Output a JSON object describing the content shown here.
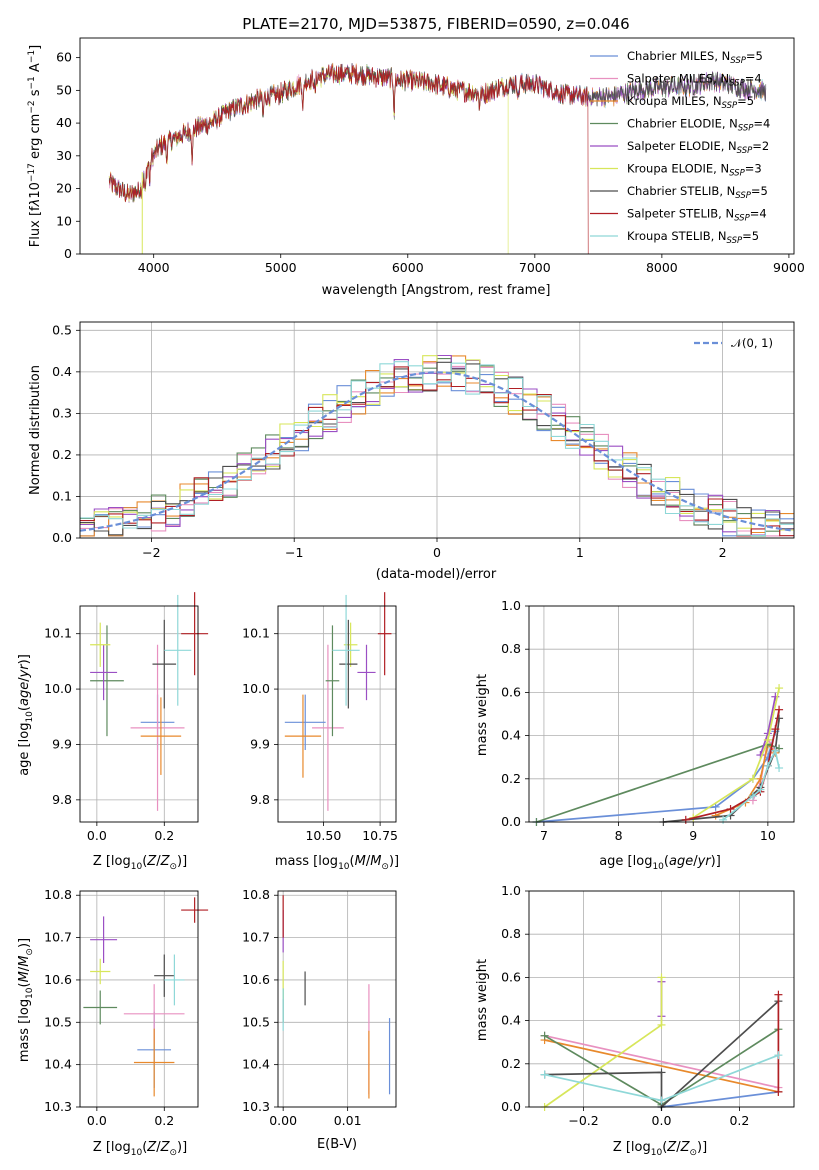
{
  "colors": {
    "c0": "#6a8fd8",
    "c1": "#e891c0",
    "c2": "#e8892c",
    "c3": "#5e8a5e",
    "c4": "#9b4fc4",
    "c5": "#d7e65a",
    "c6": "#4d4d4d",
    "c7": "#b01f24",
    "c8": "#8fd8d8"
  },
  "chart_data": [
    {
      "type": "line",
      "title": "PLATE=2170, MJD=53875, FIBERID=0590, z=0.046",
      "xlabel": "wavelength [Angstrom, rest frame]",
      "ylabel": "Flux [f_λ10^-17 erg cm^-2 s^-1 A^-1]",
      "xlim": [
        3420,
        9040
      ],
      "ylim": [
        0,
        66
      ],
      "xticks": [
        "4000",
        "5000",
        "6000",
        "7000",
        "8000",
        "9000"
      ],
      "yticks": [
        "0",
        "10",
        "20",
        "30",
        "40",
        "50",
        "60"
      ],
      "legend_position": "upper right",
      "series": [
        {
          "name": "Chabrier MILES, N_SSP=5"
        },
        {
          "name": "Salpeter MILES, N_SSP=4"
        },
        {
          "name": "Kroupa MILES, N_SSP=5"
        },
        {
          "name": "Chabrier ELODIE, N_SSP=4"
        },
        {
          "name": "Salpeter ELODIE, N_SSP=2"
        },
        {
          "name": "Kroupa ELODIE, N_SSP=3"
        },
        {
          "name": "Chabrier STELIB, N_SSP=5"
        },
        {
          "name": "Salpeter STELIB, N_SSP=4"
        },
        {
          "name": "Kroupa STELIB, N_SSP=5"
        }
      ],
      "continuum": {
        "x": [
          3650,
          3720,
          3800,
          3900,
          3960,
          4050,
          4150,
          4300,
          4450,
          4600,
          4800,
          5000,
          5200,
          5400,
          5600,
          5800,
          6000,
          6200,
          6400,
          6600,
          6800,
          7000,
          7200,
          7400,
          7600,
          7800,
          8000,
          8200,
          8400,
          8600,
          8800
        ],
        "y": [
          22,
          20,
          18,
          20,
          28,
          33,
          35,
          38,
          40,
          44,
          47,
          49,
          53,
          55,
          55,
          54,
          53,
          52,
          50,
          49,
          52,
          52,
          49,
          48,
          48,
          50,
          51,
          51,
          53,
          51,
          50
        ]
      },
      "segments_end": {
        "Kroupa ELODIE, N_SSP=3": 6790,
        "Salpeter STELIB, N_SSP=4": 7420
      }
    },
    {
      "type": "step",
      "xlabel": "(data-model)/error",
      "ylabel": "Normed distribution",
      "xlim": [
        -2.5,
        2.5
      ],
      "ylim": [
        0,
        0.52
      ],
      "xticks": [
        "−2",
        "−1",
        "0",
        "1",
        "2"
      ],
      "yticks": [
        "0.0",
        "0.1",
        "0.2",
        "0.3",
        "0.4",
        "0.5"
      ],
      "legend": "𝒩(0, 1)",
      "bin_width": 0.1
    },
    {
      "type": "scatter",
      "xlabel": "Z [log10(Z/Z⊙)]",
      "ylabel": "age  [log10(age/yr)]",
      "xlim": [
        -0.05,
        0.3
      ],
      "ylim": [
        9.76,
        10.15
      ],
      "xticks": [
        "0.0",
        "0.2"
      ],
      "yticks": [
        "9.8",
        "9.9",
        "10.0",
        "10.1"
      ],
      "points": [
        {
          "x": 0.18,
          "y": 9.94,
          "xerr": 0.05,
          "yerr": 0.05,
          "c": "c0"
        },
        {
          "x": 0.18,
          "y": 9.93,
          "xerr": 0.08,
          "yerr": 0.15,
          "c": "c1"
        },
        {
          "x": 0.19,
          "y": 9.915,
          "xerr": 0.06,
          "yerr": 0.07,
          "c": "c2"
        },
        {
          "x": 0.03,
          "y": 10.015,
          "xerr": 0.05,
          "yerr": 0.1,
          "c": "c3"
        },
        {
          "x": 0.02,
          "y": 10.03,
          "xerr": 0.04,
          "yerr": 0.05,
          "c": "c4"
        },
        {
          "x": 0.01,
          "y": 10.08,
          "xerr": 0.03,
          "yerr": 0.04,
          "c": "c5"
        },
        {
          "x": 0.2,
          "y": 10.045,
          "xerr": 0.035,
          "yerr": 0.08,
          "c": "c6"
        },
        {
          "x": 0.29,
          "y": 10.1,
          "xerr": 0.04,
          "yerr": 0.075,
          "c": "c7"
        },
        {
          "x": 0.24,
          "y": 10.07,
          "xerr": 0.04,
          "yerr": 0.1,
          "c": "c8"
        }
      ]
    },
    {
      "type": "scatter",
      "xlabel": "mass [log10(M/M⊙)]",
      "ylabel": "",
      "xlim": [
        10.3,
        10.82
      ],
      "ylim": [
        9.76,
        10.15
      ],
      "xticks": [
        "10.50",
        "10.75"
      ],
      "yticks": [
        "9.8",
        "9.9",
        "10.0",
        "10.1"
      ],
      "points": [
        {
          "x": 10.42,
          "y": 9.94,
          "xerr": 0.09,
          "yerr": 0.05,
          "c": "c0"
        },
        {
          "x": 10.52,
          "y": 9.93,
          "xerr": 0.07,
          "yerr": 0.15,
          "c": "c1"
        },
        {
          "x": 10.41,
          "y": 9.915,
          "xerr": 0.08,
          "yerr": 0.075,
          "c": "c2"
        },
        {
          "x": 10.54,
          "y": 10.015,
          "xerr": 0.03,
          "yerr": 0.1,
          "c": "c3"
        },
        {
          "x": 10.69,
          "y": 10.03,
          "xerr": 0.04,
          "yerr": 0.05,
          "c": "c4"
        },
        {
          "x": 10.62,
          "y": 10.08,
          "xerr": 0.03,
          "yerr": 0.04,
          "c": "c5"
        },
        {
          "x": 10.61,
          "y": 10.045,
          "xerr": 0.04,
          "yerr": 0.08,
          "c": "c6"
        },
        {
          "x": 10.77,
          "y": 10.1,
          "xerr": 0.03,
          "yerr": 0.075,
          "c": "c7"
        },
        {
          "x": 10.6,
          "y": 10.07,
          "xerr": 0.06,
          "yerr": 0.1,
          "c": "c8"
        }
      ]
    },
    {
      "type": "line",
      "xlabel": "age  [log10(age/yr)]",
      "ylabel": "mass weight",
      "xlim": [
        6.8,
        10.35
      ],
      "ylim": [
        0,
        1.0
      ],
      "xticks": [
        "7",
        "8",
        "9",
        "10"
      ],
      "yticks": [
        "0.0",
        "0.2",
        "0.4",
        "0.6",
        "0.8",
        "1.0"
      ],
      "series": [
        {
          "c": "c0",
          "x": [
            6.9,
            9.3,
            9.8,
            10.0,
            10.1
          ],
          "y": [
            0.0,
            0.07,
            0.2,
            0.3,
            0.42
          ]
        },
        {
          "c": "c1",
          "x": [
            9.8,
            9.9,
            10.0,
            10.1
          ],
          "y": [
            0.1,
            0.18,
            0.38,
            0.34
          ]
        },
        {
          "c": "c2",
          "x": [
            9.3,
            9.7,
            9.9,
            10.0,
            10.1
          ],
          "y": [
            0.03,
            0.09,
            0.2,
            0.36,
            0.32
          ]
        },
        {
          "c": "c3",
          "x": [
            6.9,
            10.0,
            10.15
          ],
          "y": [
            0.0,
            0.36,
            0.34
          ]
        },
        {
          "c": "c4",
          "x": [
            9.9,
            10.0,
            10.1
          ],
          "y": [
            0.31,
            0.41,
            0.58
          ]
        },
        {
          "c": "c5",
          "x": [
            9.0,
            9.8,
            10.0,
            10.15
          ],
          "y": [
            0.02,
            0.2,
            0.38,
            0.62
          ]
        },
        {
          "c": "c6",
          "x": [
            8.6,
            9.5,
            9.9,
            10.1,
            10.15
          ],
          "y": [
            0.0,
            0.03,
            0.16,
            0.33,
            0.48
          ]
        },
        {
          "c": "c7",
          "x": [
            8.9,
            9.5,
            9.9,
            10.0,
            10.1,
            10.15
          ],
          "y": [
            0.01,
            0.06,
            0.14,
            0.26,
            0.43,
            0.52
          ]
        },
        {
          "c": "c8",
          "x": [
            9.4,
            9.8,
            9.9,
            10.0,
            10.1,
            10.15
          ],
          "y": [
            0.01,
            0.12,
            0.15,
            0.26,
            0.33,
            0.25
          ]
        }
      ]
    },
    {
      "type": "scatter",
      "xlabel": "Z [log10(Z/Z⊙)]",
      "ylabel": "mass [log10(M/M⊙)]",
      "xlim": [
        -0.05,
        0.3
      ],
      "ylim": [
        10.3,
        10.81
      ],
      "xticks": [
        "0.0",
        "0.2"
      ],
      "yticks": [
        "10.3",
        "10.4",
        "10.5",
        "10.6",
        "10.7",
        "10.8"
      ],
      "points": [
        {
          "x": 0.17,
          "y": 10.435,
          "xerr": 0.05,
          "yerr": 0.09,
          "c": "c0"
        },
        {
          "x": 0.17,
          "y": 10.52,
          "xerr": 0.09,
          "yerr": 0.07,
          "c": "c1"
        },
        {
          "x": 0.17,
          "y": 10.405,
          "xerr": 0.06,
          "yerr": 0.08,
          "c": "c2"
        },
        {
          "x": 0.01,
          "y": 10.535,
          "xerr": 0.05,
          "yerr": 0.04,
          "c": "c3"
        },
        {
          "x": 0.02,
          "y": 10.695,
          "xerr": 0.04,
          "yerr": 0.055,
          "c": "c4"
        },
        {
          "x": 0.01,
          "y": 10.62,
          "xerr": 0.03,
          "yerr": 0.03,
          "c": "c5"
        },
        {
          "x": 0.2,
          "y": 10.61,
          "xerr": 0.03,
          "yerr": 0.05,
          "c": "c6"
        },
        {
          "x": 0.29,
          "y": 10.765,
          "xerr": 0.04,
          "yerr": 0.03,
          "c": "c7"
        },
        {
          "x": 0.23,
          "y": 10.6,
          "xerr": 0.03,
          "yerr": 0.06,
          "c": "c8"
        }
      ]
    },
    {
      "type": "scatter",
      "xlabel": "E(B-V)",
      "ylabel": "",
      "xlim": [
        -0.0008,
        0.0175
      ],
      "ylim": [
        10.3,
        10.81
      ],
      "xticks": [
        "0.00",
        "0.01"
      ],
      "yticks": [
        "10.3",
        "10.4",
        "10.5",
        "10.6",
        "10.7",
        "10.8"
      ],
      "points": [
        {
          "x": 0.0165,
          "y": 10.42,
          "xerr": 0,
          "yerr": 0.09,
          "c": "c0"
        },
        {
          "x": 0.0133,
          "y": 10.46,
          "xerr": 0,
          "yerr": 0.13,
          "c": "c1"
        },
        {
          "x": 0.0133,
          "y": 10.4,
          "xerr": 0,
          "yerr": 0.08,
          "c": "c2"
        },
        {
          "x": 0.0,
          "y": 10.54,
          "xerr": 0,
          "yerr": 0.04,
          "c": "c3"
        },
        {
          "x": 0.0,
          "y": 10.715,
          "xerr": 0,
          "yerr": 0.05,
          "c": "c4"
        },
        {
          "x": 0.0,
          "y": 10.6,
          "xerr": 0,
          "yerr": 0.045,
          "c": "c5"
        },
        {
          "x": 0.0034,
          "y": 10.58,
          "xerr": 0,
          "yerr": 0.04,
          "c": "c6"
        },
        {
          "x": 0.0,
          "y": 10.75,
          "xerr": 0,
          "yerr": 0.05,
          "c": "c7"
        },
        {
          "x": 0.0,
          "y": 10.53,
          "xerr": 0,
          "yerr": 0.05,
          "c": "c8"
        }
      ]
    },
    {
      "type": "line",
      "xlabel": "Z [log10(Z/Z⊙)]",
      "ylabel": "mass weight",
      "xlim": [
        -0.34,
        0.34
      ],
      "ylim": [
        0,
        1.0
      ],
      "xticks": [
        "−0.2",
        "0.0",
        "0.2"
      ],
      "yticks": [
        "0.0",
        "0.2",
        "0.4",
        "0.6",
        "0.8",
        "1.0"
      ],
      "series": [
        {
          "c": "c0",
          "x": [
            0.0,
            0.3
          ],
          "y": [
            0.0,
            0.07
          ]
        },
        {
          "c": "c1",
          "x": [
            -0.3,
            0.3
          ],
          "y": [
            0.33,
            0.09
          ]
        },
        {
          "c": "c2",
          "x": [
            -0.3,
            0.3
          ],
          "y": [
            0.31,
            0.07
          ]
        },
        {
          "c": "c3",
          "x": [
            -0.3,
            0.0,
            0.3
          ],
          "y": [
            0.33,
            0.01,
            0.36
          ]
        },
        {
          "c": "c4",
          "x": [
            0.0,
            0.0
          ],
          "y": [
            0.42,
            0.58
          ]
        },
        {
          "c": "c5",
          "x": [
            -0.3,
            0.0,
            0.0
          ],
          "y": [
            0.0,
            0.38,
            0.6
          ]
        },
        {
          "c": "c6",
          "x": [
            -0.3,
            0.0,
            0.0,
            0.3
          ],
          "y": [
            0.15,
            0.16,
            0.0,
            0.49
          ]
        },
        {
          "c": "c7",
          "x": [
            0.3,
            0.3
          ],
          "y": [
            0.07,
            0.52
          ]
        },
        {
          "c": "c8",
          "x": [
            -0.3,
            0.0,
            0.3
          ],
          "y": [
            0.15,
            0.03,
            0.24
          ]
        }
      ]
    }
  ]
}
